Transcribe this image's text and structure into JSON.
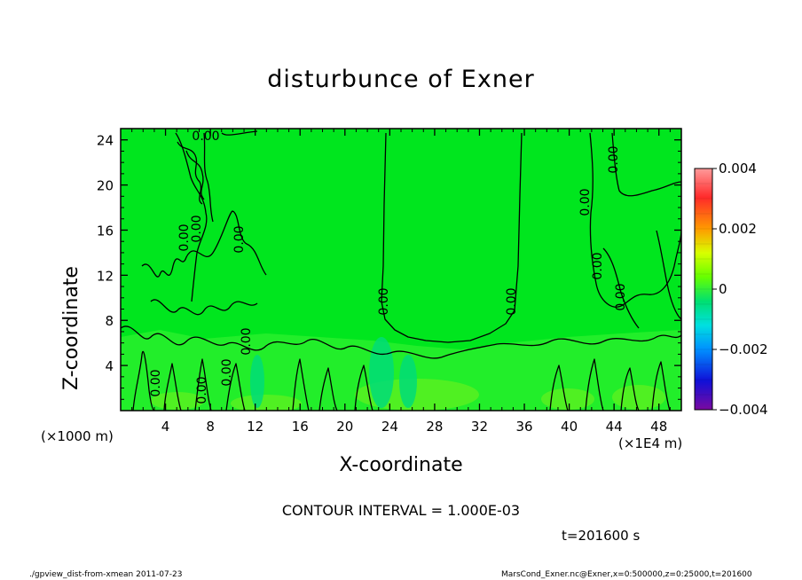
{
  "chart_data": {
    "type": "heatmap",
    "title": "disturbunce of Exner",
    "xlabel": "X-coordinate",
    "ylabel": "Z-coordinate",
    "x_unit": "(×1E4 m)",
    "y_unit": "(×1000 m)",
    "xlim": [
      0,
      50
    ],
    "ylim": [
      0,
      25
    ],
    "x_ticks": [
      4,
      8,
      12,
      16,
      20,
      24,
      28,
      32,
      36,
      40,
      44,
      48
    ],
    "y_ticks": [
      4,
      8,
      12,
      16,
      20,
      24
    ],
    "contour_interval_text": "CONTOUR INTERVAL = 1.000E-03",
    "contour_label": "0.00",
    "colorbar": {
      "min": -0.004,
      "max": 0.004,
      "tick_labels": [
        "0.004",
        "0.002",
        "0",
        "−0.002",
        "−0.004"
      ],
      "tick_values": [
        0.004,
        0.002,
        0,
        -0.002,
        -0.004
      ]
    },
    "time_label": "t=201600 s"
  },
  "footer": {
    "left": "./gpview_dist-from-xmean   2011-07-23",
    "right": "MarsCond_Exner.nc@Exner,x=0:500000,z=0:25000,t=201600"
  }
}
